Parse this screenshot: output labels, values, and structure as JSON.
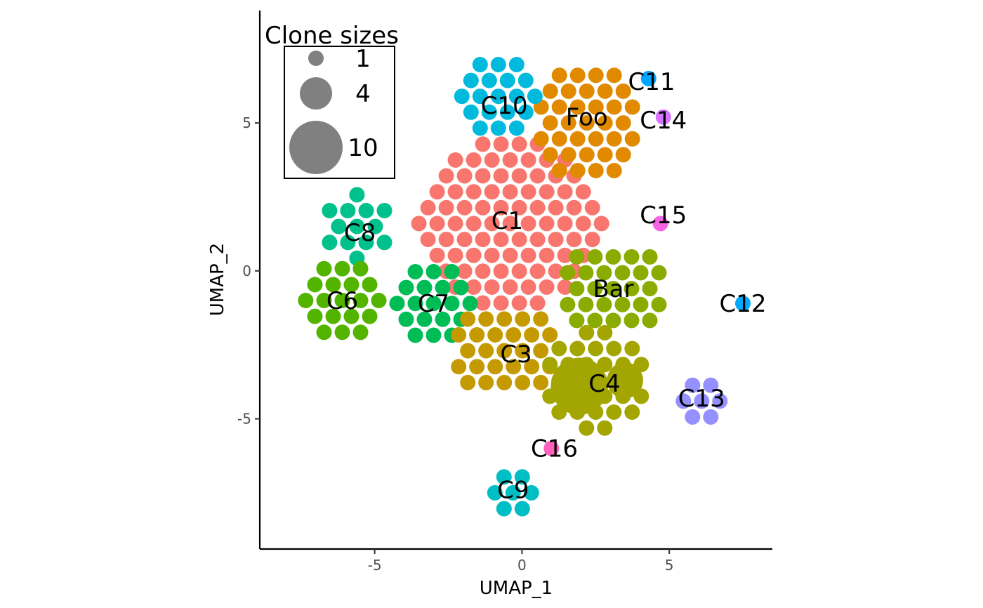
{
  "chart_data": {
    "type": "scatter",
    "title": "",
    "xlabel": "UMAP_1",
    "ylabel": "UMAP_2",
    "xlim": [
      -8.9,
      8.5
    ],
    "ylim": [
      -9.4,
      8.8
    ],
    "xticks": [
      -5,
      0,
      5
    ],
    "yticks": [
      -5,
      0,
      5
    ],
    "grid": false,
    "legend": {
      "title": "Clone sizes",
      "placement": "top-left",
      "entries": [
        {
          "label": "1",
          "size": 1
        },
        {
          "label": "4",
          "size": 4
        },
        {
          "label": "10",
          "size": 10
        }
      ]
    },
    "clusters": [
      {
        "label": "C1",
        "color": "#F8766D",
        "label_x": -0.5,
        "label_y": 1.7,
        "center": [
          -0.4,
          1.6
        ],
        "rx": 3.1,
        "ry": 3.0
      },
      {
        "label": "Foo",
        "color": "#E18A00",
        "label_x": 2.2,
        "label_y": 5.2,
        "center": [
          2.2,
          5.0
        ],
        "rx": 1.8,
        "ry": 2.1
      },
      {
        "label": "C10",
        "color": "#00BADE",
        "label_x": -0.6,
        "label_y": 5.6,
        "center": [
          -0.8,
          5.9
        ],
        "rx": 1.3,
        "ry": 1.5
      },
      {
        "label": "C11",
        "color": "#00A5FF",
        "label_x": 4.4,
        "label_y": 6.4,
        "center": [
          4.3,
          6.5
        ],
        "rx": 0.45,
        "ry": 0.3
      },
      {
        "label": "C14",
        "color": "#D575FE",
        "label_x": 4.8,
        "label_y": 5.1,
        "center": [
          4.8,
          5.2
        ],
        "rx": 0.5,
        "ry": 0.35
      },
      {
        "label": "C8",
        "color": "#00C08B",
        "label_x": -5.5,
        "label_y": 1.3,
        "center": [
          -5.6,
          1.5
        ],
        "rx": 1.2,
        "ry": 1.2
      },
      {
        "label": "C6",
        "color": "#53B400",
        "label_x": -6.1,
        "label_y": -1.0,
        "center": [
          -6.1,
          -1.0
        ],
        "rx": 1.6,
        "ry": 1.3
      },
      {
        "label": "C7",
        "color": "#00BC56",
        "label_x": -3.0,
        "label_y": -1.1,
        "center": [
          -3.0,
          -1.1
        ],
        "rx": 1.5,
        "ry": 1.3
      },
      {
        "label": "C15",
        "color": "#F564E3",
        "label_x": 4.8,
        "label_y": 1.9,
        "center": [
          4.7,
          1.6
        ],
        "rx": 0.6,
        "ry": 0.6
      },
      {
        "label": "Bar",
        "color": "#8AAB00",
        "label_x": 3.1,
        "label_y": -0.6,
        "center": [
          3.1,
          -0.6
        ],
        "rx": 1.8,
        "ry": 1.6
      },
      {
        "label": "C12",
        "color": "#00A9FF",
        "label_x": 7.5,
        "label_y": -1.1,
        "center": [
          7.5,
          -1.1
        ],
        "rx": 0.1,
        "ry": 0.1
      },
      {
        "label": "C3",
        "color": "#C49A00",
        "label_x": -0.2,
        "label_y": -2.8,
        "center": [
          -0.6,
          -2.7
        ],
        "rx": 1.8,
        "ry": 1.6
      },
      {
        "label": "C4",
        "color": "#A3A500",
        "label_x": 2.8,
        "label_y": -3.8,
        "center": [
          2.5,
          -3.7
        ],
        "rx": 1.7,
        "ry": 1.7
      },
      {
        "label": "C13",
        "color": "#9590FF",
        "label_x": 6.1,
        "label_y": -4.3,
        "center": [
          6.1,
          -4.4
        ],
        "rx": 0.9,
        "ry": 0.8
      },
      {
        "label": "C16",
        "color": "#FF62BC",
        "label_x": 1.1,
        "label_y": -6.0,
        "center": [
          1.0,
          -6.0
        ],
        "rx": 0.4,
        "ry": 0.25
      },
      {
        "label": "C9",
        "color": "#00BFC4",
        "label_x": -0.3,
        "label_y": -7.4,
        "center": [
          -0.3,
          -7.5
        ],
        "rx": 0.8,
        "ry": 0.8
      }
    ],
    "big_points": [
      {
        "cluster": "C4",
        "x": 1.95,
        "y": -3.9,
        "size": 10
      },
      {
        "cluster": "C4",
        "x": 3.5,
        "y": -3.7,
        "size": 4
      }
    ]
  }
}
